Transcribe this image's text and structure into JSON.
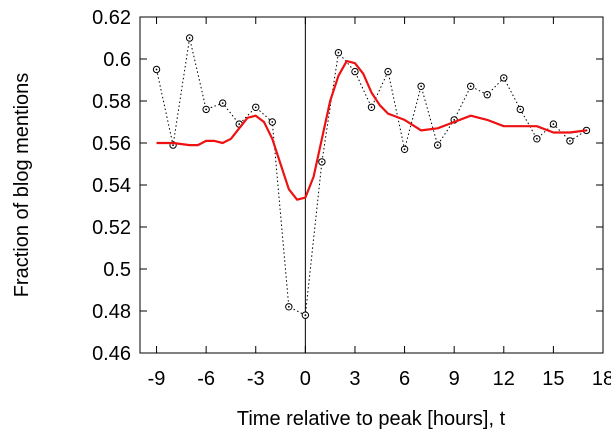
{
  "chart_data": {
    "type": "line",
    "title": "",
    "xlabel": "Time relative to peak [hours], t",
    "ylabel": "Fraction of blog mentions",
    "xlim": [
      -10,
      18
    ],
    "ylim": [
      0.46,
      0.62
    ],
    "xticks": [
      -9,
      -6,
      -3,
      0,
      3,
      6,
      9,
      12,
      15,
      18
    ],
    "xtick_labels": [
      "-9",
      "-6",
      "-3",
      "0",
      "3",
      "6",
      "9",
      "12",
      "15",
      "18"
    ],
    "yticks": [
      0.46,
      0.48,
      0.5,
      0.52,
      0.54,
      0.56,
      0.58,
      0.6,
      0.62
    ],
    "ytick_labels": [
      "0.46",
      "0.48",
      "0.5",
      "0.52",
      "0.54",
      "0.56",
      "0.58",
      "0.6",
      "0.62"
    ],
    "grid": false,
    "vertical_line_x": 0,
    "series": [
      {
        "style": "dotted-circle-markers",
        "color": "#000000",
        "x": [
          -9,
          -8,
          -7,
          -6,
          -5,
          -4,
          -3,
          -2,
          -1,
          0,
          1,
          2,
          3,
          4,
          5,
          6,
          7,
          8,
          9,
          10,
          11,
          12,
          13,
          14,
          15,
          16,
          17
        ],
        "y": [
          0.595,
          0.559,
          0.61,
          0.576,
          0.579,
          0.569,
          0.577,
          0.57,
          0.482,
          0.478,
          0.551,
          0.603,
          0.594,
          0.577,
          0.594,
          0.557,
          0.587,
          0.559,
          0.571,
          0.587,
          0.583,
          0.591,
          0.576,
          0.562,
          0.569,
          0.561,
          0.566
        ]
      },
      {
        "style": "solid",
        "color": "#ee1111",
        "x": [
          -9,
          -8,
          -7,
          -6.5,
          -6,
          -5.5,
          -5,
          -4.5,
          -4,
          -3.5,
          -3,
          -2.5,
          -2,
          -1.5,
          -1,
          -0.5,
          0,
          0.5,
          1,
          1.5,
          2,
          2.5,
          3,
          3.5,
          4,
          4.5,
          5,
          6,
          7,
          8,
          9,
          10,
          11,
          12,
          13,
          14,
          15,
          16,
          17
        ],
        "y": [
          0.56,
          0.56,
          0.559,
          0.559,
          0.561,
          0.561,
          0.56,
          0.562,
          0.567,
          0.572,
          0.573,
          0.57,
          0.562,
          0.55,
          0.538,
          0.533,
          0.534,
          0.544,
          0.562,
          0.58,
          0.592,
          0.599,
          0.598,
          0.593,
          0.584,
          0.578,
          0.574,
          0.571,
          0.566,
          0.567,
          0.57,
          0.573,
          0.571,
          0.568,
          0.568,
          0.568,
          0.565,
          0.565,
          0.566
        ]
      }
    ]
  }
}
